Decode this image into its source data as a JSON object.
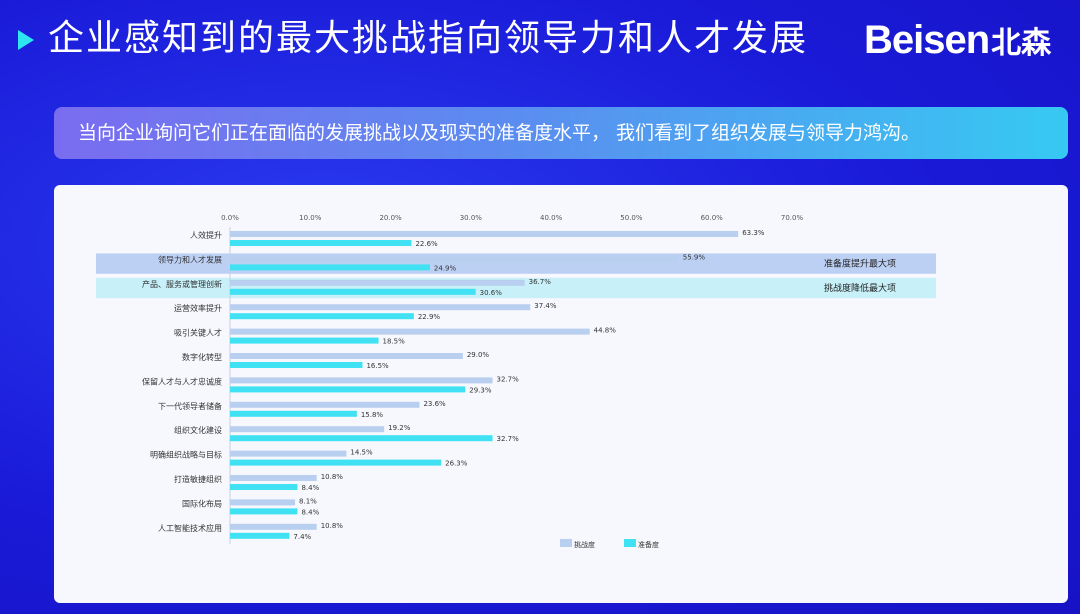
{
  "header": {
    "title": "企业感知到的最大挑战指向领导力和人才发展",
    "logo_text": "Beisen",
    "logo_cn": "北森"
  },
  "banner": {
    "text": "当向企业询问它们正在面临的发展挑战以及现实的准备度水平， 我们看到了组织发展与领导力鸿沟。"
  },
  "colors": {
    "background": "#1f1ad6",
    "title_arrow": "#2ee6f0",
    "challenge_bar": "#b9cff0",
    "readiness_bar": "#3fe1f2",
    "highlight_row_1": "#bcd0f4",
    "highlight_row_2": "#c7f0f8"
  },
  "chart_data": {
    "type": "bar",
    "orientation": "horizontal",
    "categories": [
      "人效提升",
      "领导力和人才发展",
      "产品、服务或管理创新",
      "运营效率提升",
      "吸引关键人才",
      "数字化转型",
      "保留人才与人才忠诚度",
      "下一代领导者储备",
      "组织文化建设",
      "明确组织战略与目标",
      "打造敏捷组织",
      "国际化布局",
      "人工智能技术应用"
    ],
    "series": [
      {
        "name": "挑战度",
        "values": [
          63.3,
          55.9,
          36.7,
          37.4,
          44.8,
          29.0,
          32.7,
          23.6,
          19.2,
          14.5,
          10.8,
          8.1,
          10.8
        ],
        "labels": [
          "63.3%",
          "55.9%",
          "36.7%",
          "37.4%",
          "44.8%",
          "29.0%",
          "32.7%",
          "23.6%",
          "19.2%",
          "14.5%",
          "10.8%",
          "8.1%",
          "10.8%"
        ]
      },
      {
        "name": "准备度",
        "values": [
          22.6,
          24.9,
          30.6,
          22.9,
          18.5,
          16.5,
          29.3,
          15.8,
          32.7,
          26.3,
          8.4,
          8.4,
          7.4
        ],
        "labels": [
          "22.6%",
          "24.9%",
          "30.6%",
          "22.9%",
          "18.5%",
          "16.5%",
          "29.3%",
          "15.8%",
          "32.7%",
          "26.3%",
          "8.4%",
          "8.4%",
          "7.4%"
        ]
      }
    ],
    "xlim": [
      0,
      70
    ],
    "xticks": [
      "0.0%",
      "10.0%",
      "20.0%",
      "30.0%",
      "40.0%",
      "50.0%",
      "60.0%",
      "70.0%"
    ],
    "highlights": [
      {
        "category_index": 1,
        "label": "准备度提升最大项"
      },
      {
        "category_index": 2,
        "label": "挑战度降低最大项"
      }
    ],
    "legend_position": "bottom-right",
    "title": "",
    "xlabel": "",
    "ylabel": ""
  }
}
